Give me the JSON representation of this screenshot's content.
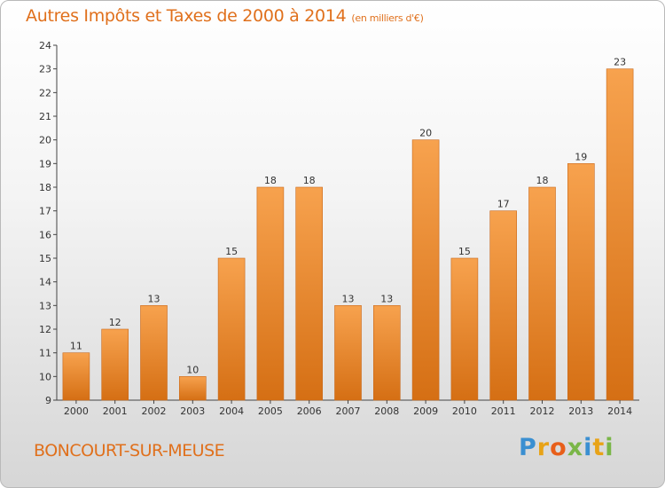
{
  "header": {
    "title": "Autres Impôts et Taxes de 2000 à 2014",
    "subtitle": "(en milliers d'€)"
  },
  "footer": {
    "commune": "BONCOURT-SUR-MEUSE",
    "logo_letters": [
      "P",
      "r",
      "o",
      "x",
      "i",
      "t",
      "i"
    ],
    "logo_colors": [
      "#3a8fd1",
      "#e8a317",
      "#e85f1a",
      "#7ab648",
      "#3a8fd1",
      "#e8a317",
      "#7ab648"
    ]
  },
  "colors": {
    "bar_light": "#f7a24e",
    "bar_dark": "#d56f14",
    "axis": "#444444",
    "grid": "#d0d0d0",
    "title": "#e0701c"
  },
  "chart_data": {
    "type": "bar",
    "categories": [
      "2000",
      "2001",
      "2002",
      "2003",
      "2004",
      "2005",
      "2006",
      "2007",
      "2008",
      "2009",
      "2010",
      "2011",
      "2012",
      "2013",
      "2014"
    ],
    "values": [
      11,
      12,
      13,
      10,
      15,
      18,
      18,
      13,
      13,
      20,
      15,
      17,
      18,
      19,
      23
    ],
    "ylim": [
      9,
      24
    ],
    "yticks": [
      9,
      10,
      11,
      12,
      13,
      14,
      15,
      16,
      17,
      18,
      19,
      20,
      21,
      22,
      23,
      24
    ],
    "grid": false,
    "data_labels": true
  }
}
